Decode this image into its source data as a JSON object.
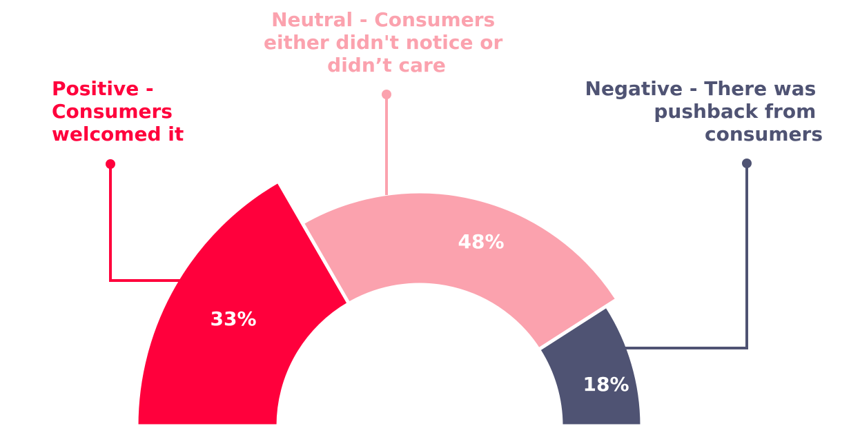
{
  "chart_data": {
    "type": "pie",
    "variant": "semi-donut",
    "categories": [
      "Positive - Consumers welcomed it",
      "Neutral - Consumers either didn't notice or didn’t care",
      "Negative - There was pushback from consumers"
    ],
    "values": [
      33,
      48,
      18
    ],
    "data_labels": [
      "33%",
      "48%",
      "18%"
    ],
    "colors": [
      "#FF003C",
      "#FBA2AE",
      "#4F5373"
    ],
    "label_lines": [
      [
        "Positive -",
        "Consumers",
        "welcomed it"
      ],
      [
        "Neutral - Consumers",
        "either didn't notice or",
        "didn’t care"
      ],
      [
        "Negative - There was",
        "pushback from",
        "consumers"
      ]
    ]
  }
}
